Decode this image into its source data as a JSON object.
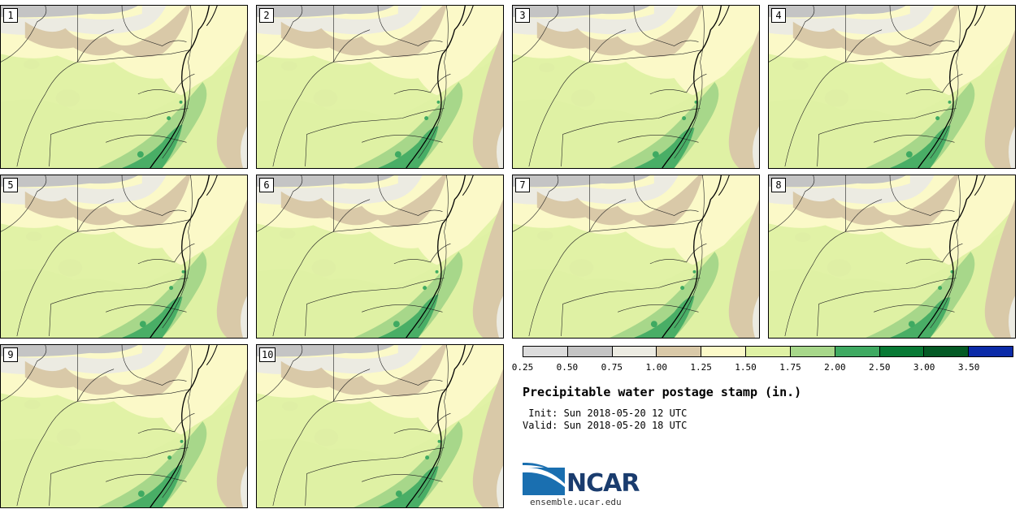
{
  "panels": [
    {
      "label": "1"
    },
    {
      "label": "2"
    },
    {
      "label": "3"
    },
    {
      "label": "4"
    },
    {
      "label": "5"
    },
    {
      "label": "6"
    },
    {
      "label": "7"
    },
    {
      "label": "8"
    },
    {
      "label": "9"
    },
    {
      "label": "10"
    }
  ],
  "colorbar": {
    "colors": [
      "#dcdcdc",
      "#c4c4c4",
      "#ecebe2",
      "#d9c9a8",
      "#fbf9c8",
      "#dff1a4",
      "#a7d78a",
      "#3faa62",
      "#087a35",
      "#045a25",
      "#0b2ba8"
    ],
    "ticks": [
      "0.25",
      "0.50",
      "0.75",
      "1.00",
      "1.25",
      "1.50",
      "1.75",
      "2.00",
      "2.50",
      "3.00",
      "3.50"
    ]
  },
  "title": "Precipitable water postage stamp (in.)",
  "init": " Init: Sun 2018-05-20 12 UTC",
  "valid": "Valid: Sun 2018-05-20 18 UTC",
  "logo": {
    "text": "NCAR",
    "url": "ensemble.ucar.edu",
    "color": "#1a6fb0"
  }
}
